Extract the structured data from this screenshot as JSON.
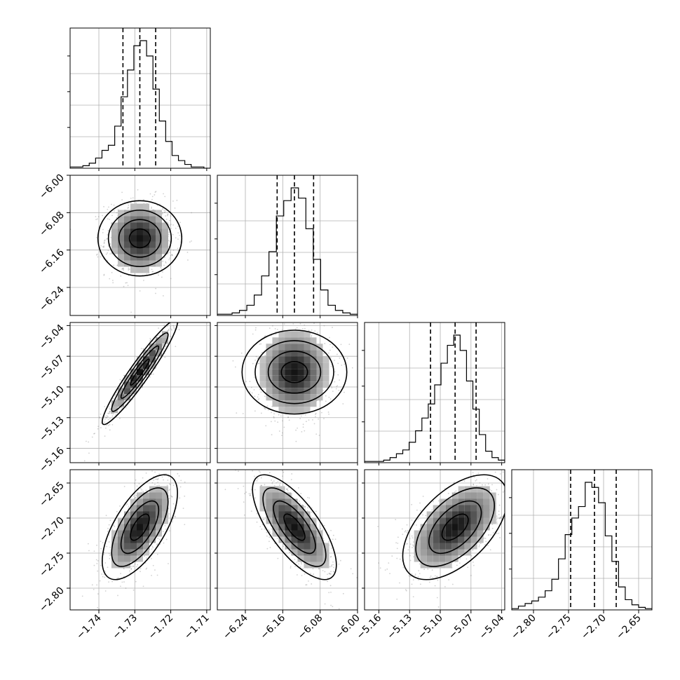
{
  "chart_data": {
    "type": "corner",
    "quantiles": [
      0.16,
      0.5,
      0.84
    ],
    "parameters": [
      {
        "range": [
          -1.748,
          -1.709
        ],
        "ticks": [
          -1.74,
          -1.73,
          -1.72,
          -1.71
        ],
        "tick_labels": [
          "−1.74",
          "−1.73",
          "−1.72",
          "−1.71"
        ],
        "quantile_values": [
          -1.7333,
          -1.7286,
          -1.7242
        ],
        "hist": [
          1,
          1,
          2,
          4,
          8,
          14,
          18,
          33,
          56,
          77,
          96,
          100,
          88,
          62,
          37,
          21,
          10,
          6,
          3,
          1,
          1,
          0
        ]
      },
      {
        "range": [
          -6.3,
          -6.0
        ],
        "ticks": [
          -6.24,
          -6.16,
          -6.08,
          -6.0
        ],
        "tick_labels": [
          "−6.24",
          "−6.16",
          "−6.08",
          "−6.00"
        ],
        "quantile_values": [
          -6.172,
          -6.135,
          -6.094
        ],
        "hist": [
          1,
          1,
          2,
          4,
          8,
          16,
          31,
          50,
          78,
          90,
          100,
          92,
          68,
          44,
          20,
          8,
          4,
          2,
          1
        ]
      },
      {
        "range": [
          -5.174,
          -5.037
        ],
        "ticks": [
          -5.16,
          -5.13,
          -5.1,
          -5.07,
          -5.04
        ],
        "tick_labels": [
          "−5.16",
          "−5.13",
          "−5.10",
          "−5.07",
          "−5.04"
        ],
        "quantile_values": [
          -5.1095,
          -5.0855,
          -5.065
        ],
        "hist": [
          1,
          1,
          1,
          2,
          4,
          7,
          10,
          16,
          25,
          35,
          46,
          61,
          78,
          92,
          100,
          88,
          64,
          42,
          22,
          9,
          4,
          2
        ]
      },
      {
        "range": [
          -2.831,
          -2.631
        ],
        "ticks": [
          -2.8,
          -2.75,
          -2.7,
          -2.65
        ],
        "tick_labels": [
          "−2.80",
          "−2.75",
          "−2.70",
          "−2.65"
        ],
        "quantile_values": [
          -2.747,
          -2.713,
          -2.682
        ],
        "hist": [
          1,
          3,
          5,
          7,
          10,
          15,
          24,
          40,
          59,
          72,
          81,
          100,
          96,
          84,
          58,
          38,
          18,
          8,
          4,
          2,
          1
        ]
      }
    ],
    "correlations": [
      [
        0,
        0,
        0,
        0
      ],
      [
        0.0,
        0,
        0,
        0
      ],
      [
        0.95,
        0.0,
        0,
        0
      ],
      [
        0.65,
        -0.72,
        0.55,
        0
      ]
    ],
    "contour_levels_sigma": [
      0.5,
      1.0,
      1.5,
      2.0
    ],
    "grid": true
  }
}
